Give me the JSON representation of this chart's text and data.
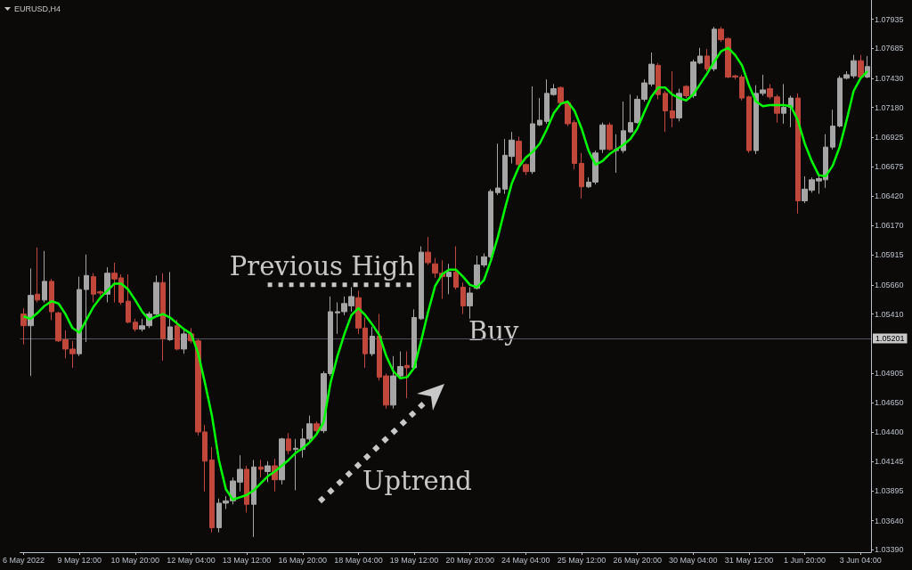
{
  "chart_data": {
    "type": "candlestick",
    "title": "EURUSD,H4",
    "categories": [
      "6 May 2022",
      null,
      null,
      null,
      null,
      null,
      null,
      null,
      "9 May 12:00",
      null,
      null,
      null,
      null,
      null,
      null,
      null,
      "10 May 20:00",
      null,
      null,
      null,
      null,
      null,
      null,
      null,
      "12 May 04:00",
      null,
      null,
      null,
      null,
      null,
      null,
      null,
      "13 May 12:00",
      null,
      null,
      null,
      null,
      null,
      null,
      null,
      "16 May 20:00",
      null,
      null,
      null,
      null,
      null,
      null,
      null,
      "18 May 04:00",
      null,
      null,
      null,
      null,
      null,
      null,
      null,
      "19 May 12:00",
      null,
      null,
      null,
      null,
      null,
      null,
      null,
      "20 May 20:00",
      null,
      null,
      null,
      null,
      null,
      null,
      null,
      "24 May 04:00",
      null,
      null,
      null,
      null,
      null,
      null,
      null,
      "25 May 12:00",
      null,
      null,
      null,
      null,
      null,
      null,
      null,
      "26 May 20:00",
      null,
      null,
      null,
      null,
      null,
      null,
      null,
      "30 May 04:00",
      null,
      null,
      null,
      null,
      null,
      null,
      null,
      "31 May 12:00",
      null,
      null,
      null,
      null,
      null,
      null,
      null,
      "1 Jun 20:00",
      null,
      null,
      null,
      null,
      null,
      null,
      null,
      "3 Jun 04:00",
      null
    ],
    "ylim": [
      1.0337,
      1.081
    ],
    "yticks": [
      {
        "value": 1.0339,
        "label": "1.03390"
      },
      {
        "value": 1.0364,
        "label": "1.03640"
      },
      1.03895,
      1.04145,
      {
        "value": 1.044,
        "label": "1.04400"
      },
      {
        "value": 1.0465,
        "label": "1.04650"
      },
      1.04905,
      {
        "value": 1.0541,
        "label": "1.05410"
      },
      {
        "value": 1.0566,
        "label": "1.05660"
      },
      1.05915,
      {
        "value": 1.0617,
        "label": "1.06170"
      },
      {
        "value": 1.0642,
        "label": "1.06420"
      },
      1.06675,
      1.06925,
      {
        "value": 1.0718,
        "label": "1.07180"
      },
      {
        "value": 1.0743,
        "label": "1.07430"
      },
      1.07685,
      1.07935
    ],
    "grid": false,
    "marker": "none",
    "ref_lines": [
      {
        "axis": "y",
        "value": 1.05201,
        "label": "1.05201",
        "color": "#55535e"
      }
    ],
    "annotations": [
      "Buy",
      "Uptrend"
    ],
    "series": [
      {
        "ohlc": [
          [
            1.0541,
            1.0546,
            1.0515,
            1.0531
          ],
          [
            1.0531,
            1.058,
            1.0488,
            1.0557
          ],
          [
            1.0558,
            1.0598,
            1.0551,
            1.0553
          ],
          [
            1.0553,
            1.0595,
            1.0551,
            1.0569
          ],
          [
            1.0569,
            1.0571,
            1.0536,
            1.0543
          ],
          [
            1.0542,
            1.0543,
            1.0517,
            1.0518
          ],
          [
            1.0519,
            1.0527,
            1.0503,
            1.0511
          ],
          [
            1.0511,
            1.0518,
            1.0495,
            1.0507
          ],
          [
            1.0507,
            1.0573,
            1.0505,
            1.0562
          ],
          [
            1.0562,
            1.0592,
            1.0517,
            1.0574
          ],
          [
            1.0573,
            1.0576,
            1.0551,
            1.0558
          ],
          [
            1.056,
            1.0561,
            1.0557,
            1.0559
          ],
          [
            1.0558,
            1.0581,
            1.0551,
            1.0576
          ],
          [
            1.0576,
            1.0585,
            1.0551,
            1.0571
          ],
          [
            1.0572,
            1.0575,
            1.0549,
            1.0551
          ],
          [
            1.0552,
            1.0575,
            1.0533,
            1.0534
          ],
          [
            1.0534,
            1.0537,
            1.0526,
            1.0528
          ],
          [
            1.0528,
            1.0537,
            1.0526,
            1.0531
          ],
          [
            1.0531,
            1.0543,
            1.0529,
            1.0541
          ],
          [
            1.0541,
            1.0574,
            1.054,
            1.0568
          ],
          [
            1.0568,
            1.0576,
            1.0501,
            1.052
          ],
          [
            1.0519,
            1.0577,
            1.0518,
            1.053
          ],
          [
            1.0531,
            1.0536,
            1.051,
            1.0511
          ],
          [
            1.0511,
            1.0527,
            1.0507,
            1.0524
          ],
          [
            1.0524,
            1.0529,
            1.0516,
            1.0518
          ],
          [
            1.0518,
            1.052,
            1.0437,
            1.044
          ],
          [
            1.044,
            1.0446,
            1.0389,
            1.0415
          ],
          [
            1.0416,
            1.0427,
            1.0354,
            1.0358
          ],
          [
            1.0358,
            1.0383,
            1.0354,
            1.0379
          ],
          [
            1.0379,
            1.0385,
            1.0374,
            1.0381
          ],
          [
            1.0381,
            1.0401,
            1.0378,
            1.0398
          ],
          [
            1.0397,
            1.042,
            1.0389,
            1.0408
          ],
          [
            1.0408,
            1.0411,
            1.0371,
            1.0378
          ],
          [
            1.0378,
            1.0416,
            1.035,
            1.041
          ],
          [
            1.041,
            1.0416,
            1.0401,
            1.0408
          ],
          [
            1.0406,
            1.0415,
            1.0397,
            1.0411
          ],
          [
            1.0411,
            1.0417,
            1.0389,
            1.0399
          ],
          [
            1.0399,
            1.0435,
            1.0395,
            1.0434
          ],
          [
            1.0434,
            1.0439,
            1.0421,
            1.0424
          ],
          [
            1.0425,
            1.0434,
            1.039,
            1.0426
          ],
          [
            1.0425,
            1.0443,
            1.0418,
            1.0434
          ],
          [
            1.0434,
            1.0454,
            1.0431,
            1.0447
          ],
          [
            1.0447,
            1.0449,
            1.0439,
            1.0441
          ],
          [
            1.0441,
            1.0492,
            1.0439,
            1.049
          ],
          [
            1.049,
            1.0556,
            1.0488,
            1.0543
          ],
          [
            1.0542,
            1.0551,
            1.0524,
            1.0543
          ],
          [
            1.0543,
            1.0556,
            1.054,
            1.055
          ],
          [
            1.0548,
            1.0564,
            1.0543,
            1.0556
          ],
          [
            1.0555,
            1.0561,
            1.0524,
            1.0529
          ],
          [
            1.0529,
            1.0538,
            1.0495,
            1.0507
          ],
          [
            1.0507,
            1.053,
            1.0505,
            1.0522
          ],
          [
            1.0522,
            1.0541,
            1.0484,
            1.0487
          ],
          [
            1.0488,
            1.049,
            1.046,
            1.0463
          ],
          [
            1.0463,
            1.0505,
            1.046,
            1.0488
          ],
          [
            1.0488,
            1.0509,
            1.0486,
            1.0496
          ],
          [
            1.0497,
            1.0509,
            1.0469,
            1.0495
          ],
          [
            1.0495,
            1.0545,
            1.0493,
            1.0538
          ],
          [
            1.0537,
            1.0599,
            1.0536,
            1.0594
          ],
          [
            1.0594,
            1.0607,
            1.0583,
            1.0585
          ],
          [
            1.0584,
            1.0589,
            1.0572,
            1.0576
          ],
          [
            1.0576,
            1.0587,
            1.0554,
            1.0573
          ],
          [
            1.0573,
            1.0584,
            1.0558,
            1.0577
          ],
          [
            1.0577,
            1.0599,
            1.0562,
            1.0564
          ],
          [
            1.0564,
            1.0568,
            1.0541,
            1.0548
          ],
          [
            1.0548,
            1.0564,
            1.0537,
            1.0559
          ],
          [
            1.0563,
            1.0591,
            1.0562,
            1.0583
          ],
          [
            1.0583,
            1.0593,
            1.0581,
            1.059
          ],
          [
            1.059,
            1.0648,
            1.0589,
            1.0646
          ],
          [
            1.0645,
            1.0687,
            1.0643,
            1.0649
          ],
          [
            1.0648,
            1.0691,
            1.0644,
            1.0677
          ],
          [
            1.0676,
            1.0697,
            1.067,
            1.069
          ],
          [
            1.0689,
            1.0693,
            1.0667,
            1.0669
          ],
          [
            1.0669,
            1.067,
            1.066,
            1.0663
          ],
          [
            1.0663,
            1.0736,
            1.0661,
            1.0704
          ],
          [
            1.0703,
            1.0726,
            1.0702,
            1.0707
          ],
          [
            1.0706,
            1.0742,
            1.0704,
            1.073
          ],
          [
            1.0729,
            1.0738,
            1.0728,
            1.0734
          ],
          [
            1.0735,
            1.0736,
            1.072,
            1.0722
          ],
          [
            1.0722,
            1.0724,
            1.0702,
            1.0704
          ],
          [
            1.0705,
            1.0707,
            1.0665,
            1.067
          ],
          [
            1.067,
            1.0679,
            1.064,
            1.065
          ],
          [
            1.065,
            1.0658,
            1.0649,
            1.0654
          ],
          [
            1.0654,
            1.0681,
            1.0652,
            1.0679
          ],
          [
            1.0682,
            1.0705,
            1.0679,
            1.0703
          ],
          [
            1.0703,
            1.0705,
            1.0681,
            1.0682
          ],
          [
            1.0681,
            1.0695,
            1.0662,
            1.0682
          ],
          [
            1.0681,
            1.0723,
            1.0679,
            1.0698
          ],
          [
            1.0697,
            1.0729,
            1.0696,
            1.0705
          ],
          [
            1.0705,
            1.0728,
            1.0704,
            1.0725
          ],
          [
            1.0725,
            1.0742,
            1.0723,
            1.0739
          ],
          [
            1.0738,
            1.0765,
            1.0736,
            1.0755
          ],
          [
            1.0754,
            1.0756,
            1.0725,
            1.0729
          ],
          [
            1.073,
            1.0732,
            1.0697,
            1.0715
          ],
          [
            1.0715,
            1.0749,
            1.0701,
            1.0709
          ],
          [
            1.0709,
            1.0734,
            1.0706,
            1.073
          ],
          [
            1.0736,
            1.0737,
            1.0726,
            1.0728
          ],
          [
            1.0728,
            1.0759,
            1.0726,
            1.0757
          ],
          [
            1.0756,
            1.0769,
            1.0755,
            1.0762
          ],
          [
            1.0762,
            1.0768,
            1.0749,
            1.0751
          ],
          [
            1.0751,
            1.0787,
            1.0749,
            1.0785
          ],
          [
            1.0785,
            1.0787,
            1.0774,
            1.0776
          ],
          [
            1.0777,
            1.0778,
            1.0743,
            1.0744
          ],
          [
            1.0745,
            1.0746,
            1.0742,
            1.0744
          ],
          [
            1.0744,
            1.0746,
            1.0724,
            1.0726
          ],
          [
            1.0727,
            1.0728,
            1.0679,
            1.0681
          ],
          [
            1.0681,
            1.0737,
            1.0678,
            1.073
          ],
          [
            1.073,
            1.0746,
            1.0728,
            1.0733
          ],
          [
            1.0734,
            1.0738,
            1.0725,
            1.0727
          ],
          [
            1.0727,
            1.0729,
            1.0705,
            1.0713
          ],
          [
            1.0713,
            1.0738,
            1.0704,
            1.0718
          ],
          [
            1.0718,
            1.0728,
            1.0701,
            1.0726
          ],
          [
            1.0726,
            1.073,
            1.0627,
            1.0638
          ],
          [
            1.0638,
            1.0659,
            1.0636,
            1.0648
          ],
          [
            1.0647,
            1.0658,
            1.0645,
            1.0656
          ],
          [
            1.0655,
            1.066,
            1.0644,
            1.0657
          ],
          [
            1.0656,
            1.0695,
            1.0649,
            1.0684
          ],
          [
            1.0684,
            1.0716,
            1.0682,
            1.0702
          ],
          [
            1.0702,
            1.0745,
            1.0701,
            1.0743
          ],
          [
            1.0743,
            1.0749,
            1.0742,
            1.0746
          ],
          [
            1.0745,
            1.0763,
            1.0743,
            1.0758
          ],
          [
            1.0758,
            1.0763,
            1.0743,
            1.0744
          ],
          [
            1.0744,
            1.0762,
            1.0743,
            1.0753
          ]
        ],
        "colors": [
          "#c0473a",
          "#a5a5a5",
          "#c0473a",
          "#a5a5a5",
          "#c0473a",
          "#c0473a",
          "#c0473a",
          "#c0473a",
          "#a5a5a5",
          "#a5a5a5",
          "#c0473a",
          "#c0473a",
          "#a5a5a5",
          "#c0473a",
          "#c0473a",
          "#c0473a",
          "#c0473a",
          "#a5a5a5",
          "#a5a5a5",
          "#a5a5a5",
          "#c0473a",
          "#a5a5a5",
          "#c0473a",
          "#a5a5a5",
          "#c0473a",
          "#c0473a",
          "#c0473a",
          "#c0473a",
          "#a5a5a5",
          "#a5a5a5",
          "#a5a5a5",
          "#a5a5a5",
          "#c0473a",
          "#a5a5a5",
          "#c0473a",
          "#a5a5a5",
          "#c0473a",
          "#a5a5a5",
          "#c0473a",
          "#a5a5a5",
          "#a5a5a5",
          "#a5a5a5",
          "#c0473a",
          "#a5a5a5",
          "#a5a5a5",
          "#a5a5a5",
          "#a5a5a5",
          "#a5a5a5",
          "#c0473a",
          "#c0473a",
          "#a5a5a5",
          "#c0473a",
          "#c0473a",
          "#a5a5a5",
          "#a5a5a5",
          "#c0473a",
          "#a5a5a5",
          "#a5a5a5",
          "#c0473a",
          "#c0473a",
          "#c0473a",
          "#a5a5a5",
          "#c0473a",
          "#c0473a",
          "#a5a5a5",
          "#a5a5a5",
          "#a5a5a5",
          "#a5a5a5",
          "#a5a5a5",
          "#a5a5a5",
          "#a5a5a5",
          "#c0473a",
          "#c0473a",
          "#a5a5a5",
          "#a5a5a5",
          "#a5a5a5",
          "#a5a5a5",
          "#c0473a",
          "#c0473a",
          "#c0473a",
          "#c0473a",
          "#a5a5a5",
          "#a5a5a5",
          "#a5a5a5",
          "#c0473a",
          "#a5a5a5",
          "#a5a5a5",
          "#a5a5a5",
          "#a5a5a5",
          "#a5a5a5",
          "#a5a5a5",
          "#c0473a",
          "#c0473a",
          "#c0473a",
          "#a5a5a5",
          "#c0473a",
          "#a5a5a5",
          "#a5a5a5",
          "#c0473a",
          "#a5a5a5",
          "#c0473a",
          "#c0473a",
          "#c0473a",
          "#c0473a",
          "#c0473a",
          "#a5a5a5",
          "#a5a5a5",
          "#c0473a",
          "#c0473a",
          "#a5a5a5",
          "#a5a5a5",
          "#c0473a",
          "#a5a5a5",
          "#a5a5a5",
          "#a5a5a5",
          "#a5a5a5",
          "#a5a5a5",
          "#a5a5a5",
          "#a5a5a5",
          "#a5a5a5",
          "#c0473a",
          "#a5a5a5"
        ]
      },
      {
        "type": "line",
        "color": "#00ff00",
        "values": [
          1.0539,
          1.0537,
          1.0542,
          1.0548,
          1.0552,
          1.055,
          1.0541,
          1.0529,
          1.0525,
          1.0536,
          1.0547,
          1.0555,
          1.0561,
          1.0567,
          1.0567,
          1.0562,
          1.0553,
          1.0543,
          1.0536,
          1.0539,
          1.0541,
          1.0538,
          1.0533,
          1.0528,
          1.0524,
          1.0508,
          1.0482,
          1.0454,
          1.0416,
          1.0391,
          1.0382,
          1.0384,
          1.0386,
          1.039,
          1.0396,
          1.0402,
          1.0406,
          1.0411,
          1.0416,
          1.0422,
          1.0426,
          1.0431,
          1.0438,
          1.0448,
          1.0482,
          1.0505,
          1.0524,
          1.054,
          1.0546,
          1.054,
          1.0532,
          1.0523,
          1.0505,
          1.0492,
          1.0486,
          1.0487,
          1.0495,
          1.0518,
          1.0543,
          1.0565,
          1.0575,
          1.0579,
          1.0579,
          1.0573,
          1.0566,
          1.0564,
          1.057,
          1.0587,
          1.0607,
          1.0631,
          1.0653,
          1.0667,
          1.0675,
          1.068,
          1.0687,
          1.0699,
          1.0713,
          1.0721,
          1.0723,
          1.0715,
          1.07,
          1.0681,
          1.0669,
          1.0672,
          1.0678,
          1.0682,
          1.0686,
          1.0691,
          1.07,
          1.0714,
          1.0727,
          1.0735,
          1.0735,
          1.0729,
          1.0726,
          1.0724,
          1.0729,
          1.0738,
          1.0747,
          1.0757,
          1.0766,
          1.0769,
          1.0763,
          1.0754,
          1.0737,
          1.0723,
          1.0719,
          1.072,
          1.072,
          1.072,
          1.0719,
          1.0707,
          1.0687,
          1.0672,
          1.066,
          1.0659,
          1.0668,
          1.0684,
          1.0707,
          1.0732,
          1.0743,
          1.0749
        ]
      },
      {
        "type": "line",
        "name": "Previous High",
        "color": "#c8c8c8",
        "line_style": "dotted",
        "values": [
          null,
          null,
          null,
          null,
          null,
          null,
          null,
          null,
          null,
          null,
          null,
          null,
          null,
          null,
          null,
          null,
          null,
          null,
          null,
          null,
          null,
          null,
          null,
          null,
          null,
          null,
          null,
          null,
          null,
          null,
          null,
          null,
          null,
          null,
          null,
          1.0566,
          1.0566,
          1.0566,
          1.0566,
          1.0566,
          1.0566,
          1.0566,
          1.0566,
          1.0566,
          1.0566,
          1.0566,
          1.0566,
          1.0566,
          1.0566,
          1.0566,
          1.0566,
          1.0566,
          1.0566,
          1.0566,
          1.0566,
          1.0566,
          1.0566,
          null,
          null,
          null,
          null,
          null,
          null,
          null,
          null,
          null,
          null,
          null,
          null,
          null,
          null,
          null,
          null,
          null,
          null,
          null,
          null,
          null,
          null,
          null,
          null,
          null,
          null,
          null,
          null,
          null,
          null,
          null,
          null,
          null,
          null,
          null,
          null,
          null,
          null,
          null,
          null,
          null,
          null,
          null,
          null,
          null,
          null,
          null,
          null,
          null,
          null,
          null,
          null,
          null,
          null,
          null,
          null,
          null,
          null,
          null,
          null,
          null,
          null,
          null,
          null,
          null
        ]
      }
    ]
  }
}
